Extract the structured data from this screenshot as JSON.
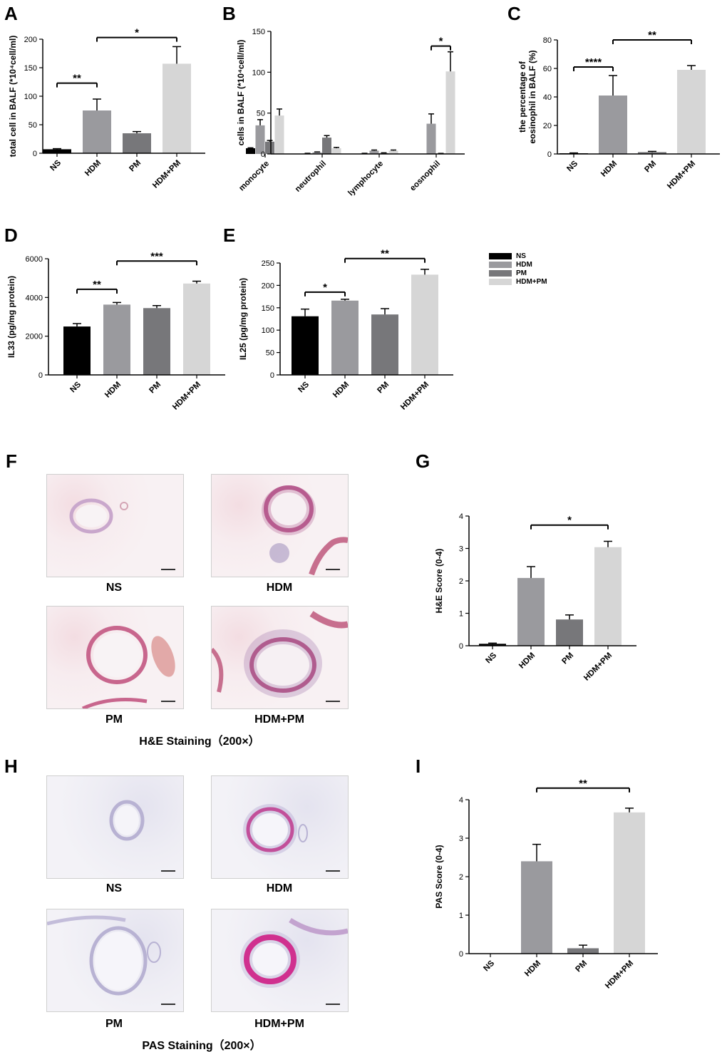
{
  "panels": {
    "A": "A",
    "B": "B",
    "C": "C",
    "D": "D",
    "E": "E",
    "F": "F",
    "G": "G",
    "H": "H",
    "I": "I"
  },
  "colors": {
    "NS": "#000000",
    "HDM": "#9a9a9e",
    "PM": "#77777a",
    "HDM+PM": "#d6d6d6",
    "error_bar": "#000000"
  },
  "legend": [
    {
      "label": "NS",
      "color": "#000000"
    },
    {
      "label": "HDM",
      "color": "#9a9a9e"
    },
    {
      "label": "PM",
      "color": "#77777a"
    },
    {
      "label": "HDM+PM",
      "color": "#d6d6d6"
    }
  ],
  "micrographs": {
    "he": {
      "labels": [
        "NS",
        "HDM",
        "PM",
        "HDM+PM"
      ],
      "caption": "H&E Staining（200×）"
    },
    "pas": {
      "labels": [
        "NS",
        "HDM",
        "PM",
        "HDM+PM"
      ],
      "caption": "PAS Staining（200×）"
    }
  },
  "chart_data": [
    {
      "id": "A",
      "type": "bar",
      "categories": [
        "NS",
        "HDM",
        "PM",
        "HDM+PM"
      ],
      "values": [
        7,
        75,
        35,
        157
      ],
      "errors": [
        1,
        20,
        3,
        30
      ],
      "ylabel": "total cell in BALF (*10⁴cell/ml)",
      "ylim": [
        0,
        200
      ],
      "yticks": [
        0,
        50,
        100,
        150,
        200
      ],
      "significance": [
        {
          "from": 0,
          "to": 1,
          "label": "**",
          "y": 123
        },
        {
          "from": 1,
          "to": 3,
          "label": "*",
          "y": 203
        }
      ]
    },
    {
      "id": "B",
      "type": "bar",
      "categories": [
        "monocyte",
        "neutrophil",
        "lymphocyte",
        "eosnophil"
      ],
      "series": [
        {
          "name": "NS",
          "values": [
            7,
            0.5,
            0.5,
            0
          ],
          "errors": [
            0.5,
            0.3,
            0.3,
            0
          ]
        },
        {
          "name": "HDM",
          "values": [
            35,
            2,
            4,
            37
          ],
          "errors": [
            7,
            0.5,
            0.8,
            12
          ]
        },
        {
          "name": "PM",
          "values": [
            15,
            20,
            1,
            0.5
          ],
          "errors": [
            1.5,
            2.5,
            0.4,
            0.2
          ]
        },
        {
          "name": "HDM+PM",
          "values": [
            47,
            7,
            4,
            101
          ],
          "errors": [
            8,
            1,
            0.8,
            24
          ]
        }
      ],
      "ylabel": "cells in BALF (*10⁴cell/ml)",
      "ylim": [
        0,
        150
      ],
      "yticks": [
        0,
        50,
        100,
        150
      ],
      "significance": [
        {
          "group": 3,
          "from": 1,
          "to": 3,
          "label": "*",
          "y": 132
        }
      ]
    },
    {
      "id": "C",
      "type": "bar",
      "categories": [
        "NS",
        "HDM",
        "PM",
        "HDM+PM"
      ],
      "values": [
        0.5,
        41,
        1.3,
        59
      ],
      "errors": [
        0.2,
        14,
        0.5,
        3
      ],
      "ylabel": [
        "the percentage of",
        "eosinophil in BALF (%)"
      ],
      "ylim": [
        0,
        80
      ],
      "yticks": [
        0,
        20,
        40,
        60,
        80
      ],
      "significance": [
        {
          "from": 0,
          "to": 1,
          "label": "****",
          "y": 61
        },
        {
          "from": 1,
          "to": 3,
          "label": "**",
          "y": 80
        }
      ]
    },
    {
      "id": "D",
      "type": "bar",
      "categories": [
        "NS",
        "HDM",
        "PM",
        "HDM+PM"
      ],
      "values": [
        2500,
        3630,
        3450,
        4720
      ],
      "errors": [
        150,
        110,
        130,
        120
      ],
      "ylabel": "IL33 (pg/mg protein)",
      "ylim": [
        0,
        6000
      ],
      "yticks": [
        0,
        2000,
        4000,
        6000
      ],
      "significance": [
        {
          "from": 0,
          "to": 1,
          "label": "**",
          "y": 4420
        },
        {
          "from": 1,
          "to": 3,
          "label": "***",
          "y": 5880
        }
      ]
    },
    {
      "id": "E",
      "type": "bar",
      "categories": [
        "NS",
        "HDM",
        "PM",
        "HDM+PM"
      ],
      "values": [
        131,
        166,
        135,
        224
      ],
      "errors": [
        16,
        3,
        13,
        12
      ],
      "ylabel": "IL25 (pg/mg protein)",
      "ylim": [
        0,
        250
      ],
      "yticks": [
        0,
        50,
        100,
        150,
        200,
        250
      ],
      "significance": [
        {
          "from": 0,
          "to": 1,
          "label": "*",
          "y": 185
        },
        {
          "from": 1,
          "to": 3,
          "label": "**",
          "y": 260
        }
      ]
    },
    {
      "id": "G",
      "type": "bar",
      "categories": [
        "NS",
        "HDM",
        "PM",
        "HDM+PM"
      ],
      "values": [
        0.06,
        2.09,
        0.81,
        3.04
      ],
      "errors": [
        0.02,
        0.35,
        0.14,
        0.18
      ],
      "ylabel": "H&E Score (0-4)",
      "ylim": [
        0,
        4
      ],
      "yticks": [
        0,
        1,
        2,
        3,
        4
      ],
      "significance": [
        {
          "from": 1,
          "to": 3,
          "label": "*",
          "y": 3.72
        }
      ]
    },
    {
      "id": "I",
      "type": "bar",
      "categories": [
        "NS",
        "HDM",
        "PM",
        "HDM+PM"
      ],
      "values": [
        0,
        2.4,
        0.14,
        3.67
      ],
      "errors": [
        0,
        0.44,
        0.08,
        0.11
      ],
      "ylabel": "PAS Score (0-4)",
      "ylim": [
        0,
        4
      ],
      "yticks": [
        0,
        1,
        2,
        3,
        4
      ],
      "significance": [
        {
          "from": 1,
          "to": 3,
          "label": "**",
          "y": 4.3
        }
      ]
    }
  ]
}
